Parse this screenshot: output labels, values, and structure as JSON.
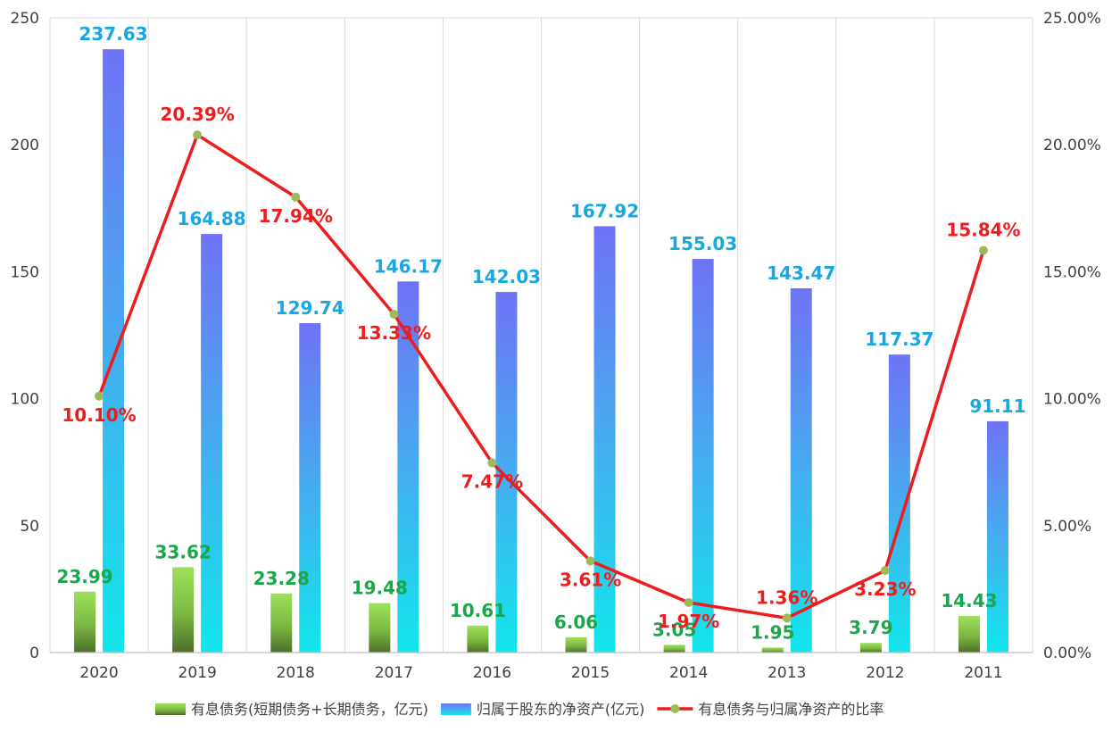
{
  "chart_data": {
    "type": "bar",
    "categories": [
      "2020",
      "2019",
      "2018",
      "2017",
      "2016",
      "2015",
      "2014",
      "2013",
      "2012",
      "2011"
    ],
    "series": [
      {
        "name": "有息债务(短期债务+长期债务，亿元)",
        "kind": "bar",
        "axis": "left",
        "values": [
          23.99,
          33.62,
          23.28,
          19.48,
          10.61,
          6.06,
          3.05,
          1.95,
          3.79,
          14.43
        ],
        "labels": [
          "23.99",
          "33.62",
          "23.28",
          "19.48",
          "10.61",
          "6.06",
          "3.05",
          "1.95",
          "3.79",
          "14.43"
        ],
        "color": "#92d050"
      },
      {
        "name": "归属于股东的净资产(亿元)",
        "kind": "bar",
        "axis": "left",
        "values": [
          237.63,
          164.88,
          129.74,
          146.17,
          142.03,
          167.92,
          155.03,
          143.47,
          117.37,
          91.11
        ],
        "labels": [
          "237.63",
          "164.88",
          "129.74",
          "146.17",
          "142.03",
          "167.92",
          "155.03",
          "143.47",
          "117.37",
          "91.11"
        ],
        "color": "#6f75f5"
      },
      {
        "name": "有息债务与归属净资产的比率",
        "kind": "line",
        "axis": "right",
        "values": [
          10.1,
          20.39,
          17.94,
          13.33,
          7.47,
          3.61,
          1.97,
          1.36,
          3.23,
          15.84
        ],
        "labels": [
          "10.10%",
          "20.39%",
          "17.94%",
          "13.33%",
          "7.47%",
          "3.61%",
          "1.97%",
          "1.36%",
          "3.23%",
          "15.84%"
        ],
        "color": "#ee1c1c"
      }
    ],
    "y_left": {
      "min": 0,
      "max": 250,
      "ticks": [
        0,
        50,
        100,
        150,
        200,
        250
      ],
      "tick_labels": [
        "0",
        "50",
        "100",
        "150",
        "200",
        "250"
      ]
    },
    "y_right": {
      "min": 0,
      "max": 25,
      "ticks": [
        0,
        5,
        10,
        15,
        20,
        25
      ],
      "tick_labels": [
        "0.00%",
        "5.00%",
        "10.00%",
        "15.00%",
        "20.00%",
        "25.00%"
      ]
    },
    "title": "",
    "xlabel": "",
    "ylabel": "",
    "grid": "vertical",
    "legend_position": "bottom"
  },
  "colors": {
    "debt_label": "#1aa64a",
    "equity_label": "#19a7e0",
    "ratio_label": "#ee1c1c",
    "ratio_marker": "#9bbb59",
    "grid": "#d9d9d9",
    "axis": "#bfbfbf"
  }
}
